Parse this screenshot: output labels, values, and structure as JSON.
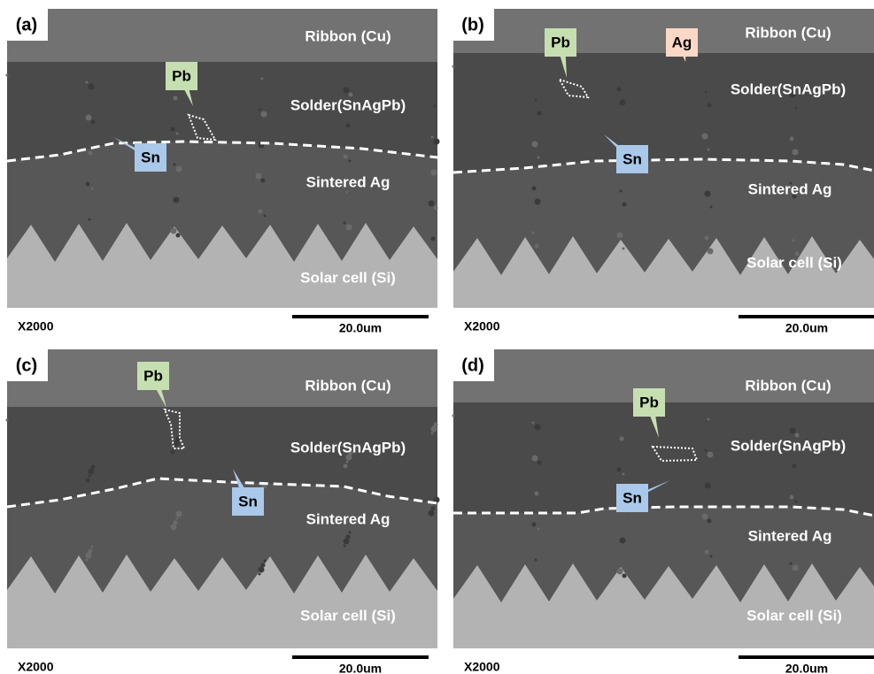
{
  "panels": [
    {
      "label": "(a)",
      "layers": [
        "Ribbon (Cu)",
        "Solder(SnAgPb)",
        "Sintered Ag",
        "Solar cell (Si)"
      ],
      "callouts": [
        "Pb",
        "Sn"
      ],
      "magnification": "X2000",
      "scale_bar": "20.0um"
    },
    {
      "label": "(b)",
      "layers": [
        "Ribbon (Cu)",
        "Solder(SnAgPb)",
        "Sintered Ag",
        "Solar cell (Si)"
      ],
      "callouts": [
        "Pb",
        "Ag",
        "Sn"
      ],
      "magnification": "X2000",
      "scale_bar": "20.0um"
    },
    {
      "label": "(c)",
      "layers": [
        "Ribbon (Cu)",
        "Solder(SnAgPb)",
        "Sintered Ag",
        "Solar cell (Si)"
      ],
      "callouts": [
        "Pb",
        "Sn"
      ],
      "magnification": "X2000",
      "scale_bar": "20.0um"
    },
    {
      "label": "(d)",
      "layers": [
        "Ribbon (Cu)",
        "Solder(SnAgPb)",
        "Sintered Ag",
        "Solar cell (Si)"
      ],
      "callouts": [
        "Pb",
        "Sn"
      ],
      "magnification": "X2000",
      "scale_bar": "20.0um"
    }
  ]
}
